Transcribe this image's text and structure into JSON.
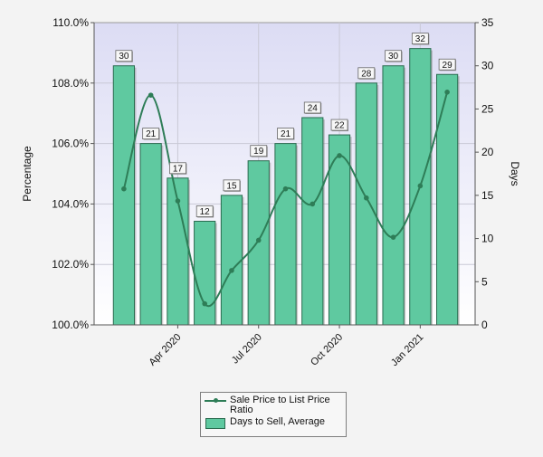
{
  "chart_data": {
    "type": "bar",
    "categories": [
      "2020-02",
      "2020-03",
      "2020-04",
      "2020-05",
      "2020-06",
      "2020-07",
      "2020-08",
      "2020-09",
      "2020-10",
      "2020-11",
      "2020-12",
      "2021-01",
      "2021-02"
    ],
    "x_tick_labels": [
      {
        "category_index": 2,
        "label": "Apr 2020"
      },
      {
        "category_index": 5,
        "label": "Jul 2020"
      },
      {
        "category_index": 8,
        "label": "Oct 2020"
      },
      {
        "category_index": 11,
        "label": "Jan 2021"
      }
    ],
    "ylabel": "Percentage",
    "y2label": "Days",
    "ylim": [
      100,
      110
    ],
    "y2lim": [
      0,
      35
    ],
    "y_ticks": [
      "100.0%",
      "102.0%",
      "104.0%",
      "106.0%",
      "108.0%",
      "110.0%"
    ],
    "y2_ticks": [
      "0",
      "5",
      "10",
      "15",
      "20",
      "25",
      "30",
      "35"
    ],
    "grid": true,
    "series": [
      {
        "name": "Days to Sell, Average",
        "type": "bar",
        "axis": "right",
        "color": "#5fc9a0",
        "values": [
          30,
          21,
          17,
          12,
          15,
          19,
          21,
          24,
          22,
          28,
          30,
          32,
          29
        ],
        "data_labels": [
          "30",
          "21",
          "17",
          "12",
          "15",
          "19",
          "21",
          "24",
          "22",
          "28",
          "30",
          "32",
          "29"
        ]
      },
      {
        "name": "Sale Price to List Price Ratio",
        "type": "line",
        "axis": "left",
        "color": "#2e7d57",
        "values": [
          104.5,
          107.6,
          104.1,
          100.7,
          101.8,
          102.8,
          104.5,
          104.0,
          105.6,
          104.2,
          102.9,
          104.6,
          107.7
        ]
      }
    ],
    "legend": {
      "position": "bottom-center"
    }
  }
}
